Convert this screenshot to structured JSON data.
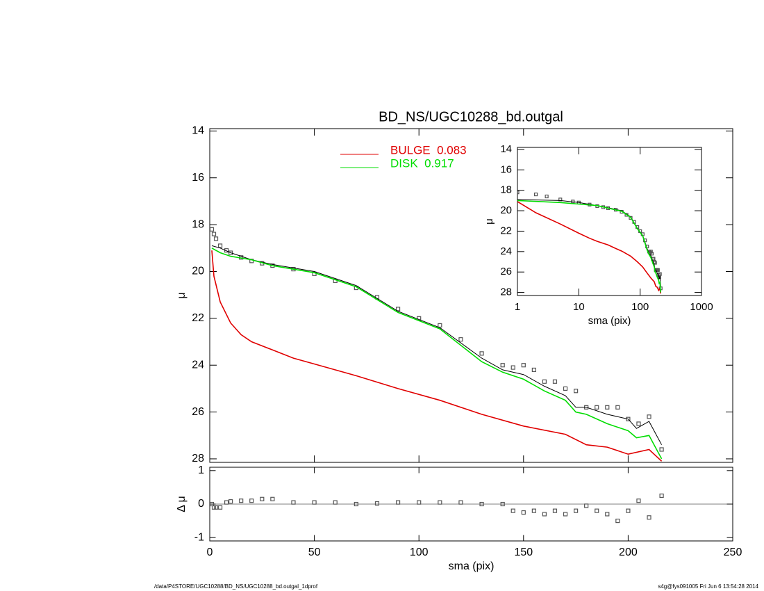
{
  "footer": {
    "left": "/data/P4STORE/UGC10288/BD_NS/UGC10288_bd.outgal_1dprof",
    "right": "s4g@fys091005  Fri Jun  6 13:54:28 2014"
  },
  "chart_data": [
    {
      "type": "line",
      "title": "BD_NS/UGC10288_bd.outgal",
      "ylabel": "μ",
      "xlim": [
        0,
        250
      ],
      "xticks": [
        0,
        50,
        100,
        150,
        200,
        250
      ],
      "xtick_labels": false,
      "ylim": [
        28.15,
        13.9
      ],
      "yticks": [
        14,
        16,
        18,
        20,
        22,
        24,
        26,
        28
      ],
      "series": [
        {
          "style": "markers",
          "color": "#555555",
          "x": [
            1,
            2,
            3,
            5,
            8,
            10,
            15,
            20,
            25,
            30,
            40,
            50,
            60,
            70,
            80,
            90,
            100,
            110,
            120,
            130,
            140,
            145,
            150,
            155,
            160,
            165,
            170,
            175,
            180,
            185,
            190,
            195,
            200,
            205,
            210,
            216
          ],
          "values": [
            18.2,
            18.4,
            18.6,
            18.9,
            19.1,
            19.2,
            19.4,
            19.55,
            19.65,
            19.75,
            19.9,
            20.1,
            20.4,
            20.7,
            21.1,
            21.6,
            22.0,
            22.3,
            22.9,
            23.5,
            24.0,
            24.1,
            24.0,
            24.2,
            24.7,
            24.7,
            25.0,
            25.1,
            25.8,
            25.8,
            25.8,
            25.8,
            26.3,
            26.5,
            26.2,
            27.6
          ]
        },
        {
          "style": "line",
          "color": "#000000",
          "x": [
            1,
            5,
            10,
            20,
            30,
            50,
            70,
            90,
            110,
            130,
            140,
            150,
            160,
            170,
            175,
            180,
            190,
            200,
            204,
            210,
            216
          ],
          "values": [
            18.9,
            19.0,
            19.2,
            19.5,
            19.7,
            20.0,
            20.6,
            21.7,
            22.4,
            23.7,
            24.2,
            24.4,
            24.9,
            25.3,
            25.8,
            25.8,
            26.1,
            26.3,
            26.7,
            26.4,
            27.4
          ]
        },
        {
          "name": "BULGE  0.083",
          "style": "line",
          "color": "#e00000",
          "x": [
            1,
            2,
            5,
            10,
            15,
            20,
            30,
            40,
            50,
            70,
            90,
            110,
            130,
            150,
            170,
            180,
            190,
            200,
            210,
            216
          ],
          "values": [
            19.1,
            20.2,
            21.3,
            22.2,
            22.7,
            23.0,
            23.35,
            23.7,
            23.95,
            24.45,
            25.0,
            25.5,
            26.1,
            26.6,
            26.95,
            27.4,
            27.5,
            27.8,
            27.6,
            28.1
          ]
        },
        {
          "name": "DISK  0.917",
          "style": "line",
          "color": "#00dd00",
          "x": [
            1,
            5,
            10,
            20,
            30,
            50,
            70,
            90,
            110,
            130,
            140,
            150,
            160,
            170,
            175,
            180,
            190,
            200,
            204,
            210,
            216
          ],
          "values": [
            19.0,
            19.2,
            19.35,
            19.5,
            19.75,
            20.05,
            20.65,
            21.75,
            22.45,
            23.85,
            24.3,
            24.6,
            25.1,
            25.5,
            26.0,
            26.1,
            26.5,
            26.8,
            27.1,
            27.0,
            28.0
          ]
        }
      ]
    },
    {
      "type": "scatter",
      "xlabel": "sma (pix)",
      "ylabel": "Δ μ",
      "xlim": [
        0,
        250
      ],
      "xticks": [
        0,
        50,
        100,
        150,
        200,
        250
      ],
      "xtick_labels": true,
      "ylim": [
        -1.1,
        1.1
      ],
      "yticks": [
        -1,
        0,
        1
      ],
      "zero_line": true,
      "series": [
        {
          "style": "markers",
          "color": "#555555",
          "x": [
            1,
            2,
            3,
            5,
            8,
            10,
            15,
            20,
            25,
            30,
            40,
            50,
            60,
            70,
            80,
            90,
            100,
            110,
            120,
            130,
            140,
            145,
            150,
            155,
            160,
            165,
            170,
            175,
            180,
            185,
            190,
            195,
            200,
            205,
            210,
            216
          ],
          "values": [
            0,
            -0.1,
            -0.1,
            -0.1,
            0.05,
            0.08,
            0.1,
            0.1,
            0.15,
            0.15,
            0.05,
            0.05,
            0.05,
            0,
            0.02,
            0.05,
            0.05,
            0.05,
            0.05,
            0,
            0,
            -0.2,
            -0.25,
            -0.2,
            -0.3,
            -0.2,
            -0.3,
            -0.2,
            -0.05,
            -0.2,
            -0.3,
            -0.5,
            -0.2,
            0.1,
            -0.4,
            0.25
          ]
        }
      ]
    },
    {
      "type": "inset",
      "xlabel": "sma (pix)",
      "ylabel": "μ",
      "xscale": "log",
      "xlim": [
        1,
        1000
      ],
      "xticks": [
        1,
        10,
        100,
        1000
      ],
      "xtick_labels": true,
      "ylim": [
        28.3,
        13.8
      ],
      "yticks": [
        14,
        16,
        18,
        20,
        22,
        24,
        26,
        28
      ]
    }
  ]
}
